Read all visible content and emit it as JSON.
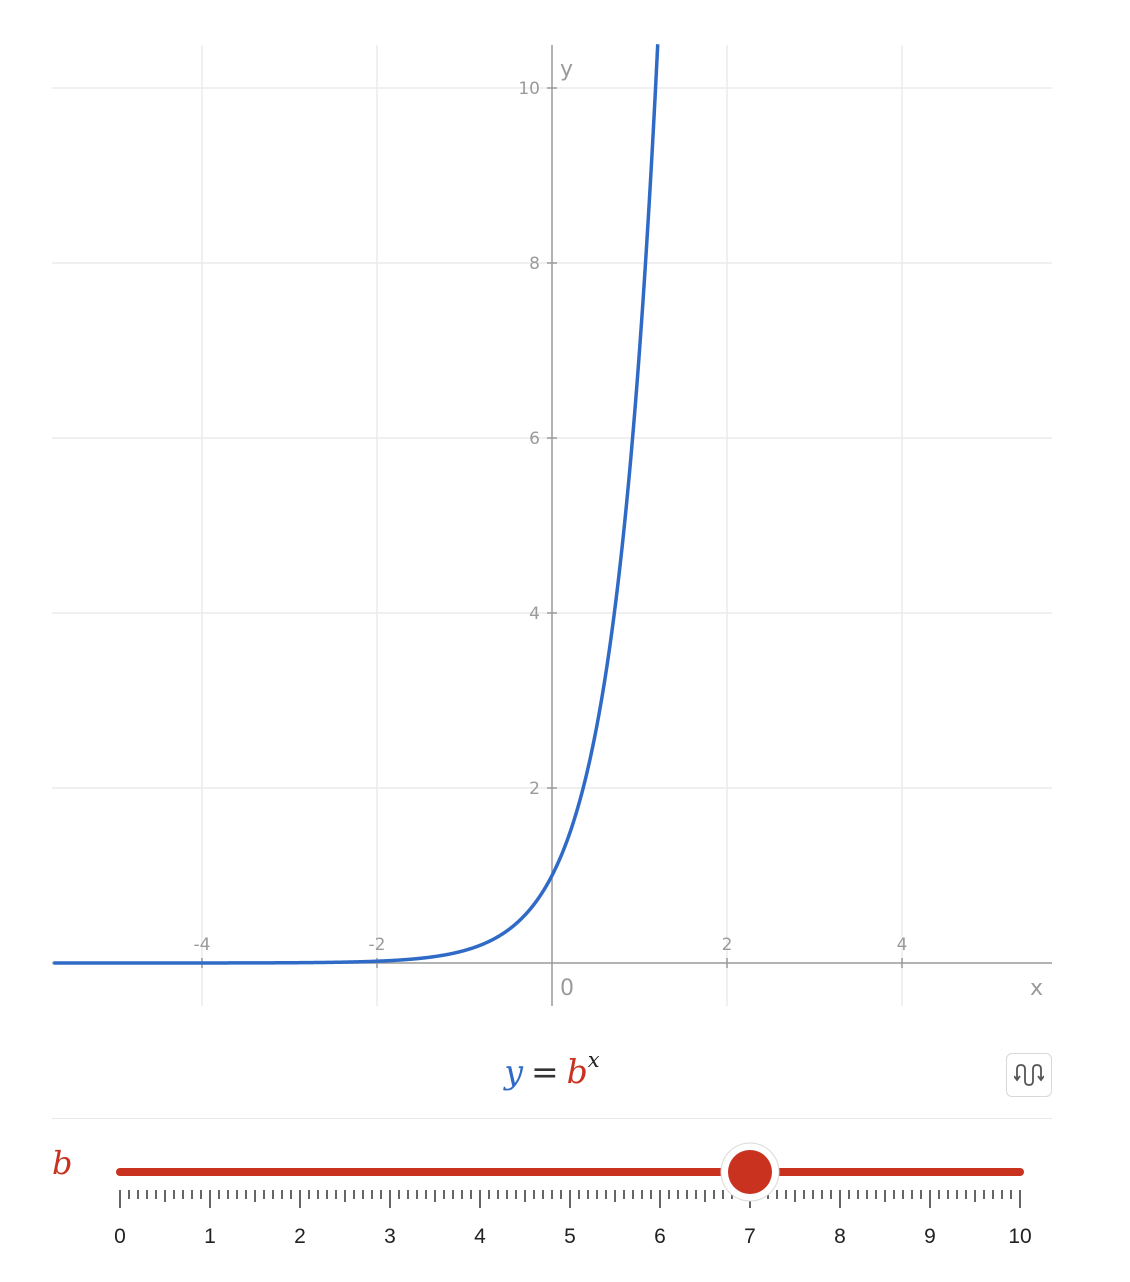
{
  "chart_data": {
    "type": "line",
    "function": "b^x",
    "x_range": [
      -5.7,
      5.7
    ],
    "y_range": [
      0,
      10.5
    ],
    "x_ticks": [
      -4,
      -2,
      2,
      4
    ],
    "y_ticks": [
      2,
      4,
      6,
      8,
      10
    ],
    "origin_label": "0",
    "xlabel": "x",
    "ylabel": "y",
    "grid": true,
    "series": [
      {
        "color": "#2f6ac7",
        "points": [
          [
            -5.7,
            0.0
          ],
          [
            -3,
            0.003
          ],
          [
            -2,
            0.02
          ],
          [
            -1,
            0.14
          ],
          [
            -0.5,
            0.38
          ],
          [
            0,
            1
          ],
          [
            0.25,
            1.63
          ],
          [
            0.5,
            2.65
          ],
          [
            0.75,
            4.3
          ],
          [
            1,
            7.0
          ],
          [
            1.2,
            10.3
          ]
        ]
      }
    ]
  },
  "formula": {
    "y": "y",
    "equals": "=",
    "base": "b",
    "exponent": "x"
  },
  "toggle_icon": "curve-toggle-icon",
  "parameter": {
    "name": "b",
    "value": 7,
    "min": 0,
    "max": 10,
    "labels": [
      "0",
      "1",
      "2",
      "3",
      "4",
      "5",
      "6",
      "7",
      "8",
      "9",
      "10"
    ]
  },
  "colors": {
    "curve": "#2f6ac7",
    "parameter": "#c8321f",
    "grid": "#ebebeb",
    "axis": "#9a9a9a"
  }
}
